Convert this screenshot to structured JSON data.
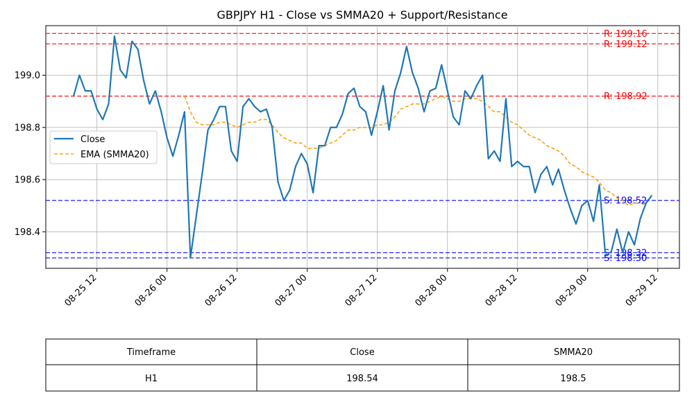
{
  "chart_data": {
    "type": "line",
    "title": "GBPJPY H1 - Close vs SMMA20 + Support/Resistance",
    "xlabel": "",
    "ylabel": "",
    "x_ticks": [
      "08-25 12",
      "08-26 00",
      "08-26 12",
      "08-27 00",
      "08-27 12",
      "08-28 00",
      "08-28 12",
      "08-29 00",
      "08-29 12"
    ],
    "y_ticks": [
      "198.4",
      "198.6",
      "198.8",
      "199.0"
    ],
    "ylim": [
      198.26,
      199.19
    ],
    "grid": true,
    "legend_position": "upper-left",
    "colors": {
      "close": "#1f77b4",
      "ema": "#ff9f0e",
      "resistance": "#ff0000",
      "support": "#0000ff",
      "grid": "#b0b0b0"
    },
    "x_start": "08-25 08:00",
    "series": [
      {
        "name": "Close",
        "style": "solid",
        "values": [
          198.92,
          199.0,
          198.94,
          198.94,
          198.87,
          198.83,
          198.89,
          199.15,
          199.02,
          198.99,
          199.13,
          199.1,
          198.98,
          198.89,
          198.94,
          198.86,
          198.76,
          198.69,
          198.77,
          198.86,
          198.3,
          198.46,
          198.62,
          198.79,
          198.83,
          198.88,
          198.88,
          198.71,
          198.67,
          198.88,
          198.91,
          198.88,
          198.86,
          198.87,
          198.8,
          198.59,
          198.52,
          198.56,
          198.65,
          198.7,
          198.66,
          198.55,
          198.73,
          198.73,
          198.8,
          198.8,
          198.85,
          198.93,
          198.95,
          198.88,
          198.86,
          198.77,
          198.86,
          198.96,
          198.79,
          198.94,
          199.01,
          199.11,
          199.01,
          198.95,
          198.86,
          198.94,
          198.95,
          199.04,
          198.94,
          198.84,
          198.81,
          198.94,
          198.91,
          198.96,
          199.0,
          198.68,
          198.71,
          198.67,
          198.91,
          198.65,
          198.67,
          198.65,
          198.65,
          198.55,
          198.62,
          198.65,
          198.58,
          198.64,
          198.56,
          198.49,
          198.43,
          198.5,
          198.52,
          198.44,
          198.58,
          198.32,
          198.32,
          198.41,
          198.32,
          198.4,
          198.35,
          198.45,
          198.51,
          198.54
        ]
      },
      {
        "name": "EMA (SMMA20)",
        "style": "dashed",
        "start_index": 19,
        "values": [
          198.92,
          198.86,
          198.82,
          198.81,
          198.81,
          198.81,
          198.82,
          198.82,
          198.81,
          198.8,
          198.81,
          198.82,
          198.82,
          198.83,
          198.83,
          198.81,
          198.78,
          198.76,
          198.75,
          198.74,
          198.74,
          198.72,
          198.72,
          198.72,
          198.73,
          198.74,
          198.75,
          198.77,
          198.79,
          198.79,
          198.8,
          198.8,
          198.8,
          198.81,
          198.81,
          198.82,
          198.84,
          198.87,
          198.88,
          198.89,
          198.89,
          198.89,
          198.9,
          198.91,
          198.92,
          198.91,
          198.9,
          198.9,
          198.91,
          198.91,
          198.91,
          198.9,
          198.88,
          198.86,
          198.86,
          198.84,
          198.82,
          198.81,
          198.79,
          198.77,
          198.76,
          198.75,
          198.73,
          198.72,
          198.71,
          198.69,
          198.66,
          198.65,
          198.63,
          198.62,
          198.61,
          198.59,
          198.56,
          198.55,
          198.53,
          198.52,
          198.5,
          198.51,
          198.51,
          198.5
        ]
      }
    ],
    "levels": [
      {
        "kind": "resistance",
        "value": 199.16,
        "label": "R: 199.16"
      },
      {
        "kind": "resistance",
        "value": 199.12,
        "label": "R: 199.12"
      },
      {
        "kind": "resistance",
        "value": 198.92,
        "label": "R: 198.92"
      },
      {
        "kind": "support",
        "value": 198.52,
        "label": "S: 198.52"
      },
      {
        "kind": "support",
        "value": 198.32,
        "label": "S: 198.32"
      },
      {
        "kind": "support",
        "value": 198.3,
        "label": "S: 198.30"
      }
    ]
  },
  "table": {
    "headers": [
      "Timeframe",
      "Close",
      "SMMA20"
    ],
    "rows": [
      [
        "H1",
        "198.54",
        "198.5"
      ]
    ]
  }
}
